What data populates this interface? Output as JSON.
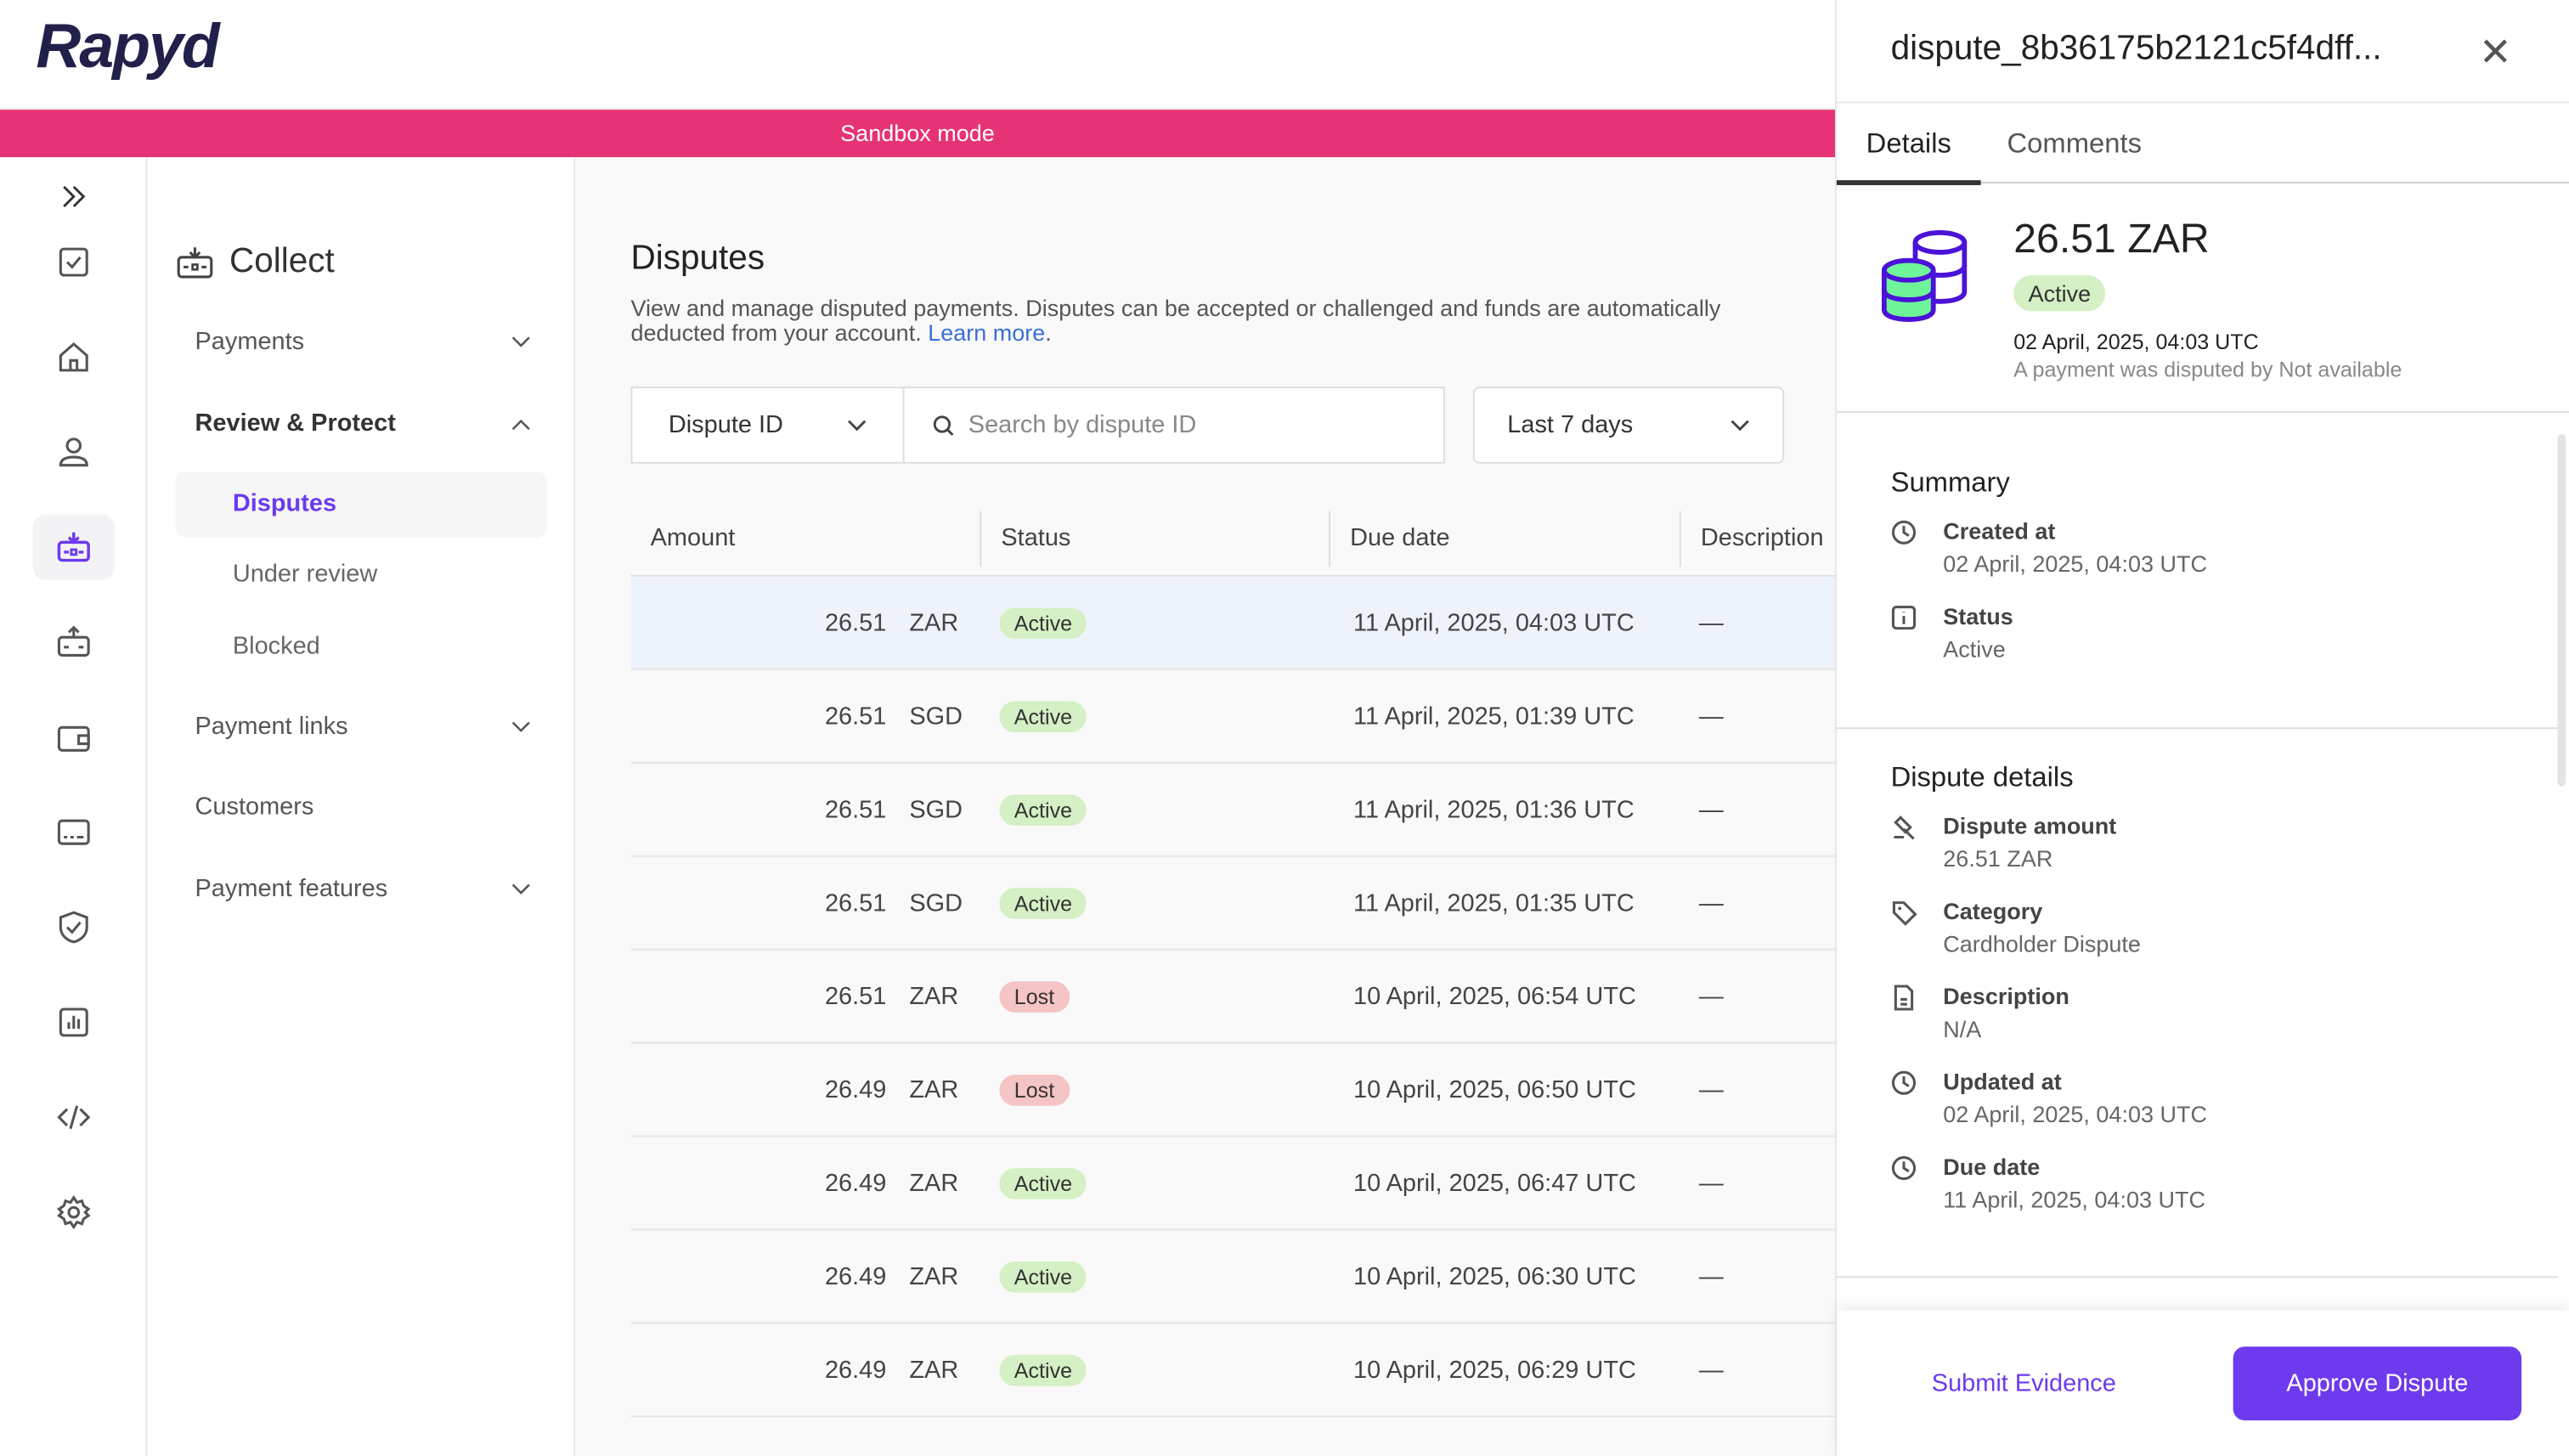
{
  "app": {
    "logo": "Rapyd",
    "banner": "Sandbox mode",
    "accent": "#6d3aed",
    "banner_color": "#e63375"
  },
  "rail": {
    "icons": [
      "expand-icon",
      "checklist-icon",
      "home-icon",
      "user-icon",
      "collect-icon",
      "disburse-icon",
      "wallet-icon",
      "card-icon",
      "shield-check-icon",
      "report-icon",
      "code-icon",
      "settings-icon"
    ],
    "active": "collect-icon"
  },
  "subnav": {
    "title": "Collect",
    "items": [
      {
        "label": "Payments",
        "chevron": "down"
      },
      {
        "label": "Review & Protect",
        "chevron": "up"
      },
      {
        "label": "Payment links",
        "chevron": "down"
      },
      {
        "label": "Customers"
      },
      {
        "label": "Payment features",
        "chevron": "down"
      }
    ],
    "sub_items": [
      {
        "label": "Disputes",
        "active": true
      },
      {
        "label": "Under review"
      },
      {
        "label": "Blocked"
      }
    ]
  },
  "main": {
    "title": "Disputes",
    "description": "View and manage disputed payments. Disputes can be accepted or challenged and funds are automatically deducted from your account.",
    "learn_more": "Learn more",
    "filter_field": "Dispute ID",
    "search_placeholder": "Search by dispute ID",
    "date_range": "Last 7 days",
    "columns": [
      "Amount",
      "Status",
      "Due date",
      "Description"
    ],
    "rows": [
      {
        "amount": "26.51",
        "currency": "ZAR",
        "status": "Active",
        "due": "11 April, 2025, 04:03 UTC",
        "desc": "—"
      },
      {
        "amount": "26.51",
        "currency": "SGD",
        "status": "Active",
        "due": "11 April, 2025, 01:39 UTC",
        "desc": "—"
      },
      {
        "amount": "26.51",
        "currency": "SGD",
        "status": "Active",
        "due": "11 April, 2025, 01:36 UTC",
        "desc": "—"
      },
      {
        "amount": "26.51",
        "currency": "SGD",
        "status": "Active",
        "due": "11 April, 2025, 01:35 UTC",
        "desc": "—"
      },
      {
        "amount": "26.51",
        "currency": "ZAR",
        "status": "Lost",
        "due": "10 April, 2025, 06:54 UTC",
        "desc": "—"
      },
      {
        "amount": "26.49",
        "currency": "ZAR",
        "status": "Lost",
        "due": "10 April, 2025, 06:50 UTC",
        "desc": "—"
      },
      {
        "amount": "26.49",
        "currency": "ZAR",
        "status": "Active",
        "due": "10 April, 2025, 06:47 UTC",
        "desc": "—"
      },
      {
        "amount": "26.49",
        "currency": "ZAR",
        "status": "Active",
        "due": "10 April, 2025, 06:30 UTC",
        "desc": "—"
      },
      {
        "amount": "26.49",
        "currency": "ZAR",
        "status": "Active",
        "due": "10 April, 2025, 06:29 UTC",
        "desc": "—"
      }
    ]
  },
  "panel": {
    "title": "dispute_8b36175b2121c5f4dff...",
    "tabs": [
      "Details",
      "Comments"
    ],
    "amount": "26.51 ZAR",
    "status": "Active",
    "date": "02 April, 2025, 04:03 UTC",
    "subtitle": "A payment was disputed by Not available",
    "summary": {
      "heading": "Summary",
      "fields": [
        {
          "icon": "clock-icon",
          "label": "Created at",
          "value": "02 April, 2025, 04:03 UTC"
        },
        {
          "icon": "info-icon",
          "label": "Status",
          "value": "Active"
        }
      ]
    },
    "details": {
      "heading": "Dispute details",
      "fields": [
        {
          "icon": "gavel-icon",
          "label": "Dispute amount",
          "value": "26.51 ZAR"
        },
        {
          "icon": "tag-icon",
          "label": "Category",
          "value": "Cardholder Dispute"
        },
        {
          "icon": "document-icon",
          "label": "Description",
          "value": "N/A"
        },
        {
          "icon": "clock-icon",
          "label": "Updated at",
          "value": "02 April, 2025, 04:03 UTC"
        },
        {
          "icon": "clock-icon",
          "label": "Due date",
          "value": "11 April, 2025, 04:03 UTC"
        }
      ]
    },
    "submit_label": "Submit Evidence",
    "approve_label": "Approve Dispute"
  }
}
